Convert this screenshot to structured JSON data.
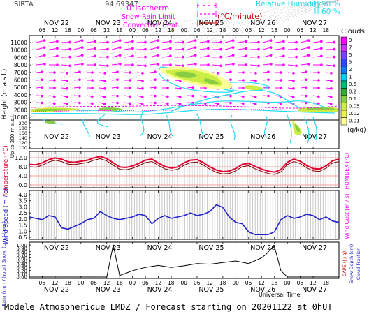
{
  "header": {
    "site": "SIRTA",
    "coord": "94.69347",
    "legend_isotherm": "0°isotherm",
    "legend_snow_rain": "Snow-Rain Limit",
    "legend_convective": "Convective Heat.",
    "legend_convective_unit": "(°C/minute)",
    "legend_rh": "Relative Humidity",
    "legend_rh_90": "90 %",
    "legend_rh_60": "60 %",
    "clouds_label": "Clouds"
  },
  "days": [
    "NOV 22",
    "NOV 23",
    "NOV 24",
    "NOV 25",
    "NOV 26",
    "NOV 27"
  ],
  "hours": [
    "06",
    "12",
    "18",
    "00",
    "06",
    "12",
    "18",
    "00",
    "06",
    "12",
    "18",
    "00",
    "06",
    "12",
    "18",
    "00",
    "06",
    "12",
    "18",
    "00",
    "06",
    "12",
    "18"
  ],
  "cloud_scale": {
    "ticks": [
      "9",
      "7",
      "5",
      "3",
      "2",
      "1",
      "0.5",
      "0.2",
      "0.1",
      "0.05",
      "0.02",
      "0.01"
    ],
    "unit": "(g/kg)",
    "colors": [
      "#ff00ff",
      "#cc33ff",
      "#7744ff",
      "#3344ff",
      "#1177ff",
      "#00ccee",
      "#00bb77",
      "#33aa33",
      "#88cc44",
      "#ccee44",
      "#eeee55",
      "#ffff99"
    ]
  },
  "panel1": {
    "ylabel": "Height (m a.s.l.)",
    "ylabel2": "Up to 200 m a.s.l.",
    "yticks_upper": [
      "11000",
      "10000",
      "9000",
      "8000",
      "7000",
      "6000",
      "5000",
      "4000",
      "3000",
      "2000",
      "1000"
    ],
    "yticks_lower": [
      "200",
      "180",
      "160",
      "140",
      "120",
      "100"
    ]
  },
  "panel2": {
    "ylabel": "Temperature (°C)",
    "ylabel_right": "HUMIDEX (°C)",
    "yticks": [
      "12.0",
      "8.0",
      "4.0",
      "0.0"
    ]
  },
  "panel3": {
    "ylabel": "Wind Speed (m / s)",
    "ylabel_right": "Wind Gust (m / s)",
    "yticks": [
      "4.0",
      "3.5",
      "3.0",
      "2.5",
      "2.0",
      "1.5",
      "1.0",
      "0.5"
    ]
  },
  "panel4": {
    "ylabel": "Rain (mm / hour) Snow (cm / hour)",
    "ylabel_right_cape": "CAPE (J / g)",
    "ylabel_right_snow": "Snow Depth (cm)",
    "ylabel_right_cloud": "Cloud Fraction",
    "yticks": [
      "1.00",
      "0.90",
      "0.80",
      "0.70",
      "0.60",
      "0.50",
      "0.40",
      "0.30",
      "0.20",
      "0.10",
      "0.00"
    ],
    "xlabel": "Universal Time"
  },
  "footer": "Modele Atmospherique LMDZ / Forecast starting on 20201122 at 0hUT",
  "colors": {
    "temperature": "#e00030",
    "wind": "#2222cc",
    "cloud_fraction": "#000000",
    "isotherm": "#ff00ff",
    "rh": "#22ddee"
  },
  "chart_data": [
    {
      "type": "line",
      "title": "",
      "ylabel": "Temperature (°C)",
      "ylim": [
        0,
        14
      ],
      "series": [
        {
          "name": "Temperature",
          "x": [
            0,
            3,
            6,
            9,
            12,
            15,
            18,
            21,
            24,
            27,
            30,
            33,
            36,
            39,
            42,
            45,
            48,
            51,
            54,
            57,
            60,
            63,
            66,
            69,
            72,
            75,
            78,
            81,
            84,
            87,
            90,
            93,
            96,
            99,
            102,
            105,
            108,
            111,
            114,
            117,
            120,
            123,
            126,
            129,
            132,
            135,
            138,
            141,
            144
          ],
          "values": [
            9.0,
            8.8,
            9.6,
            10.8,
            11.5,
            11.0,
            10.0,
            9.8,
            10.2,
            10.6,
            11.5,
            12.1,
            11.2,
            9.6,
            8.0,
            7.8,
            8.4,
            9.4,
            10.6,
            11.0,
            9.5,
            8.2,
            7.6,
            8.0,
            9.6,
            10.6,
            10.8,
            9.6,
            8.0,
            6.8,
            6.2,
            6.4,
            7.4,
            9.0,
            9.4,
            8.2,
            7.2,
            6.4,
            6.0,
            7.0,
            9.8,
            11.0,
            10.2,
            8.6,
            7.4,
            7.2,
            8.4,
            10.4,
            11.0
          ]
        }
      ]
    },
    {
      "type": "line",
      "title": "",
      "ylabel": "Wind Speed (m / s)",
      "ylim": [
        0.5,
        4.0
      ],
      "series": [
        {
          "name": "Wind Speed",
          "x": [
            0,
            3,
            6,
            9,
            12,
            15,
            18,
            21,
            24,
            27,
            30,
            33,
            36,
            39,
            42,
            45,
            48,
            51,
            54,
            57,
            60,
            63,
            66,
            69,
            72,
            75,
            78,
            81,
            84,
            87,
            90,
            93,
            96,
            99,
            102,
            105,
            108,
            111,
            114,
            117,
            120,
            123,
            126,
            129,
            132,
            135,
            138,
            141,
            144
          ],
          "values": [
            2.1,
            2.0,
            1.9,
            2.2,
            2.1,
            1.3,
            1.2,
            1.4,
            1.6,
            1.9,
            2.0,
            2.5,
            2.2,
            2.0,
            1.9,
            2.0,
            2.1,
            2.3,
            2.2,
            1.6,
            2.0,
            2.2,
            2.0,
            2.1,
            2.2,
            2.4,
            2.2,
            2.3,
            2.5,
            3.0,
            2.8,
            2.1,
            1.7,
            1.6,
            1.0,
            0.8,
            0.8,
            0.8,
            1.0,
            1.9,
            2.2,
            2.0,
            2.1,
            2.3,
            2.2,
            1.9,
            2.1,
            1.8,
            1.7
          ]
        }
      ]
    },
    {
      "type": "line",
      "title": "",
      "ylabel": "Cloud Fraction",
      "ylim": [
        0,
        1
      ],
      "series": [
        {
          "name": "Cloud Fraction",
          "x": [
            0,
            6,
            12,
            18,
            24,
            30,
            33,
            36,
            39,
            42,
            45,
            48,
            54,
            60,
            66,
            72,
            78,
            84,
            90,
            96,
            102,
            108,
            110,
            112,
            114,
            117,
            120,
            126,
            132,
            138,
            144
          ],
          "values": [
            0,
            0,
            0,
            0,
            0,
            0,
            0,
            0,
            1.0,
            0.05,
            0.12,
            0.2,
            0.3,
            0.36,
            0.3,
            0.35,
            0.42,
            0.4,
            0.45,
            0.5,
            0.42,
            0.6,
            0.7,
            0.85,
            0.95,
            0.2,
            0.0,
            0.0,
            0.0,
            0.0,
            0.0
          ]
        }
      ]
    }
  ]
}
